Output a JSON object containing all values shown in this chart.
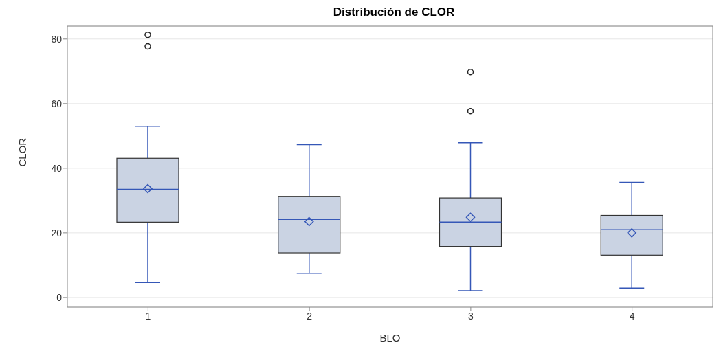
{
  "chart_data": {
    "type": "box",
    "title": "Distribución de CLOR",
    "xlabel": "BLO",
    "ylabel": "CLOR",
    "categories": [
      "1",
      "2",
      "3",
      "4"
    ],
    "boxes": [
      {
        "low": 4.6,
        "q1": 23.3,
        "median": 33.5,
        "q3": 43.1,
        "high": 53,
        "mean": 33.7,
        "outliers": [
          77.7,
          81.3
        ]
      },
      {
        "low": 7.5,
        "q1": 13.8,
        "median": 24.2,
        "q3": 31.3,
        "high": 47.3,
        "mean": 23.5
      },
      {
        "low": 2.1,
        "q1": 15.8,
        "median": 23.3,
        "q3": 30.8,
        "high": 47.9,
        "mean": 24.8,
        "outliers": [
          57.7,
          69.8
        ]
      },
      {
        "low": 2.9,
        "q1": 13.1,
        "median": 21,
        "q3": 25.4,
        "high": 35.6,
        "mean": 20
      }
    ],
    "color": "#cad3e3",
    "ylim": [
      -3,
      84
    ],
    "yticks": [
      0,
      20,
      40,
      60,
      80
    ],
    "grid": "y"
  }
}
